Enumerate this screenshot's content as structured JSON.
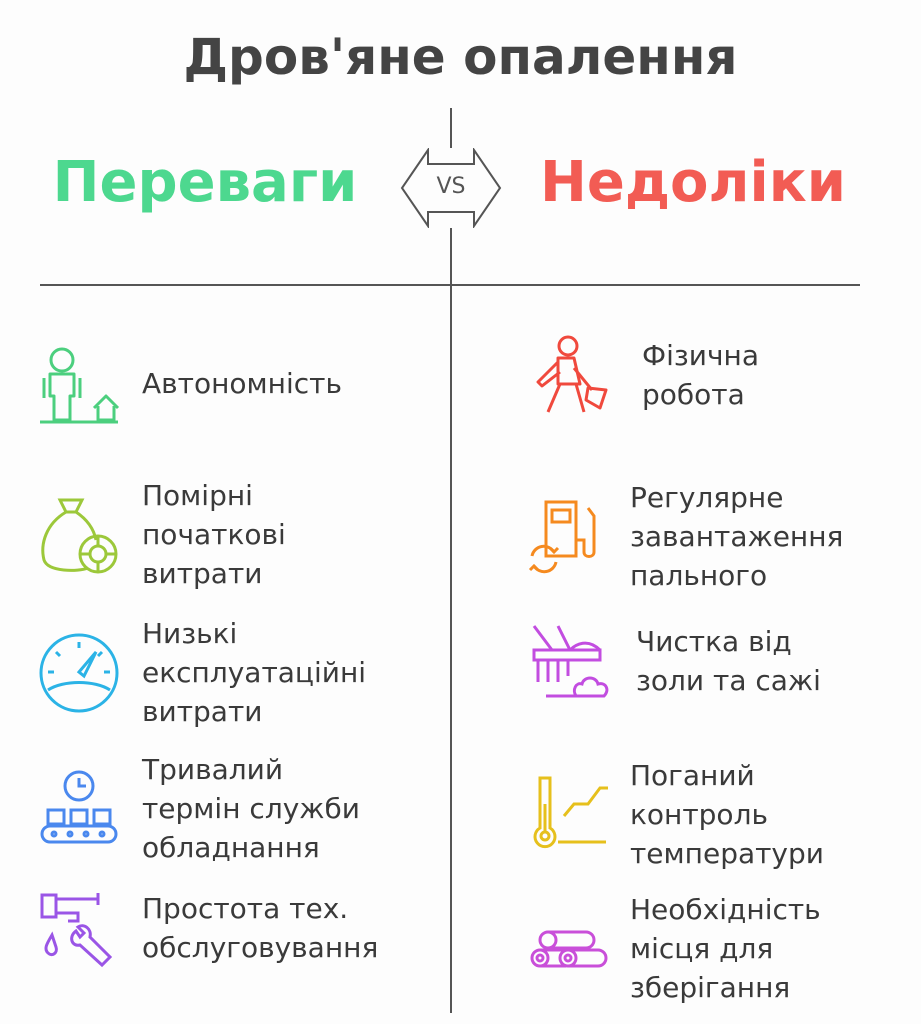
{
  "title": "Дров'яне опалення",
  "vs_label": "VS",
  "pros": {
    "heading": "Переваги",
    "color": "#4dd88f",
    "items": [
      {
        "text": "Автономність",
        "icon": "person-house-icon",
        "color": "#4ccf7e"
      },
      {
        "text": "Помірні\nпочаткові\nвитрати",
        "icon": "money-bag-coin-icon",
        "color": "#9cc83a"
      },
      {
        "text": "Низькі\nексплуатаційні\nвитрати",
        "icon": "gauge-icon",
        "color": "#2bb3e6"
      },
      {
        "text": "Тривалий\nтермін служби\nобладнання",
        "icon": "clock-conveyor-icon",
        "color": "#4a88ee"
      },
      {
        "text": "Простота тех.\nобслуговування",
        "icon": "faucet-wrench-icon",
        "color": "#9a55e6"
      }
    ]
  },
  "cons": {
    "heading": "Недоліки",
    "color": "#f25c54",
    "items": [
      {
        "text": "Фізична\nробота",
        "icon": "worker-shovel-icon",
        "color": "#f0493d"
      },
      {
        "text": "Регулярне\nзавантаження\nпального",
        "icon": "fuel-pump-refresh-icon",
        "color": "#f58a1f"
      },
      {
        "text": "Чистка від\nзоли та сажі",
        "icon": "broom-cleaning-icon",
        "color": "#c24de0"
      },
      {
        "text": "Поганий\nконтроль\nтемператури",
        "icon": "thermometer-graph-icon",
        "color": "#e6c01c"
      },
      {
        "text": "Необхідність\nмісця для\nзберігання",
        "icon": "logs-icon",
        "color": "#c94fd9"
      }
    ]
  }
}
